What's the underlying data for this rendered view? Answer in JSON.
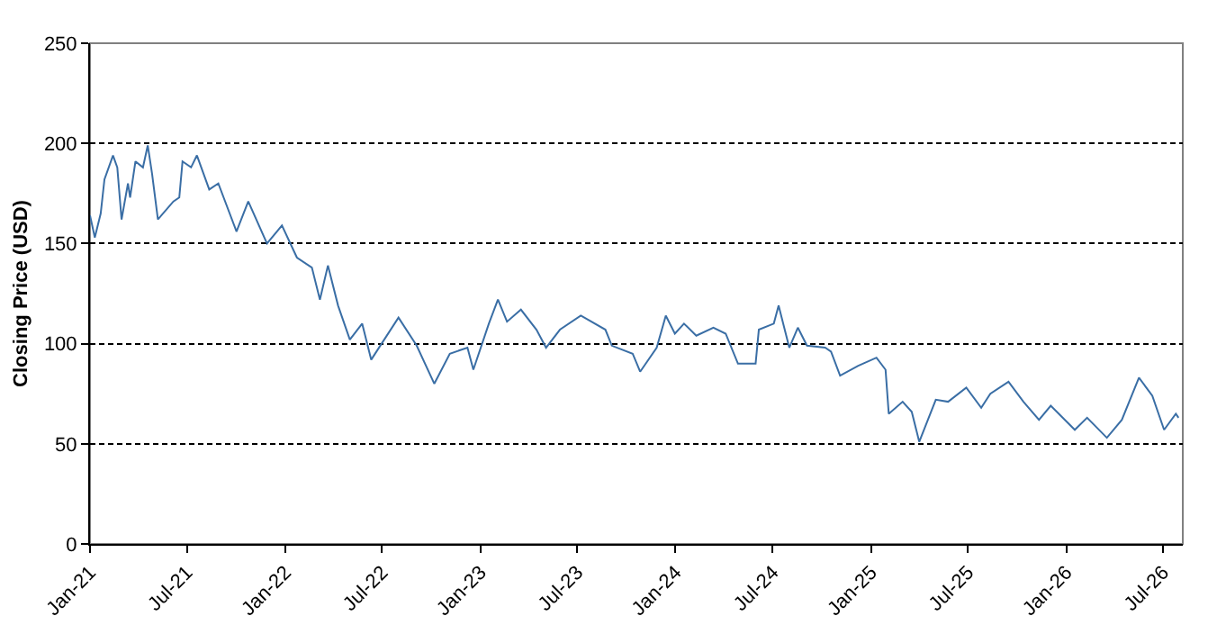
{
  "chart_data": {
    "type": "line",
    "ylabel": "Closing Price (USD)",
    "grid": "y",
    "marker": "none",
    "line_style": "solid",
    "xlim": [
      "2021-01-01",
      "2026-08-07"
    ],
    "ylim": [
      0,
      250
    ],
    "yticks": [
      0,
      50,
      100,
      150,
      200,
      250
    ],
    "xticks": [
      {
        "value": "2021-01-01",
        "label": "Jan-21"
      },
      {
        "value": "2021-07-01",
        "label": "Jul-21"
      },
      {
        "value": "2022-01-01",
        "label": "Jan-22"
      },
      {
        "value": "2022-07-01",
        "label": "Jul-22"
      },
      {
        "value": "2023-01-01",
        "label": "Jan-23"
      },
      {
        "value": "2023-07-01",
        "label": "Jul-23"
      },
      {
        "value": "2024-01-01",
        "label": "Jan-24"
      },
      {
        "value": "2024-07-01",
        "label": "Jul-24"
      },
      {
        "value": "2025-01-01",
        "label": "Jan-25"
      },
      {
        "value": "2025-07-01",
        "label": "Jul-25"
      },
      {
        "value": "2026-01-01",
        "label": "Jan-26"
      },
      {
        "value": "2026-07-01",
        "label": "Jul-26"
      }
    ],
    "x": [
      "2021-01-01",
      "2021-01-10",
      "2021-01-21",
      "2021-01-28",
      "2021-02-13",
      "2021-02-21",
      "2021-03-01",
      "2021-03-13",
      "2021-03-17",
      "2021-03-27",
      "2021-04-10",
      "2021-04-19",
      "2021-04-27",
      "2021-05-08",
      "2021-06-06",
      "2021-06-17",
      "2021-06-23",
      "2021-07-09",
      "2021-07-20",
      "2021-08-12",
      "2021-08-29",
      "2021-10-02",
      "2021-10-24",
      "2021-11-28",
      "2021-12-26",
      "2022-01-23",
      "2022-02-20",
      "2022-03-07",
      "2022-03-22",
      "2022-04-10",
      "2022-05-02",
      "2022-05-25",
      "2022-06-11",
      "2022-08-01",
      "2022-09-04",
      "2022-10-07",
      "2022-11-05",
      "2022-12-08",
      "2022-12-19",
      "2023-01-17",
      "2023-02-03",
      "2023-02-20",
      "2023-03-18",
      "2023-04-16",
      "2023-05-04",
      "2023-05-30",
      "2023-07-08",
      "2023-08-23",
      "2023-09-04",
      "2023-10-13",
      "2023-10-27",
      "2023-11-27",
      "2023-12-14",
      "2023-12-31",
      "2024-01-17",
      "2024-02-09",
      "2024-03-12",
      "2024-04-04",
      "2024-04-27",
      "2024-05-30",
      "2024-06-05",
      "2024-07-03",
      "2024-07-12",
      "2024-08-01",
      "2024-08-17",
      "2024-09-03",
      "2024-10-07",
      "2024-10-18",
      "2024-11-04",
      "2024-12-08",
      "2025-01-11",
      "2025-01-28",
      "2025-02-03",
      "2025-03-01",
      "2025-03-18",
      "2025-04-01",
      "2025-05-02",
      "2025-05-25",
      "2025-06-28",
      "2025-07-26",
      "2025-08-12",
      "2025-09-15",
      "2025-10-13",
      "2025-11-11",
      "2025-12-03",
      "2026-01-17",
      "2026-02-09",
      "2026-03-18",
      "2026-04-15",
      "2026-05-17",
      "2026-06-11",
      "2026-07-03",
      "2026-07-25",
      "2026-07-30"
    ],
    "series": [
      {
        "color": "#3a6ea5",
        "values": [
          164,
          153,
          165,
          182,
          194,
          188,
          162,
          180,
          173,
          191,
          188,
          199,
          185,
          162,
          171,
          173,
          191,
          188,
          194,
          177,
          180,
          156,
          171,
          150,
          159,
          143,
          138,
          122,
          139,
          119,
          102,
          110,
          92,
          113,
          99,
          80,
          95,
          98,
          87,
          110,
          122,
          111,
          117,
          107,
          98,
          107,
          114,
          107,
          99,
          95,
          86,
          98,
          114,
          105,
          110,
          104,
          108,
          105,
          90,
          90,
          107,
          110,
          119,
          98,
          108,
          99,
          98,
          96,
          84,
          89,
          93,
          87,
          65,
          71,
          66,
          51,
          72,
          71,
          78,
          68,
          75,
          81,
          71,
          62,
          69,
          57,
          63,
          53,
          62,
          83,
          74,
          57,
          65,
          63
        ]
      }
    ]
  }
}
